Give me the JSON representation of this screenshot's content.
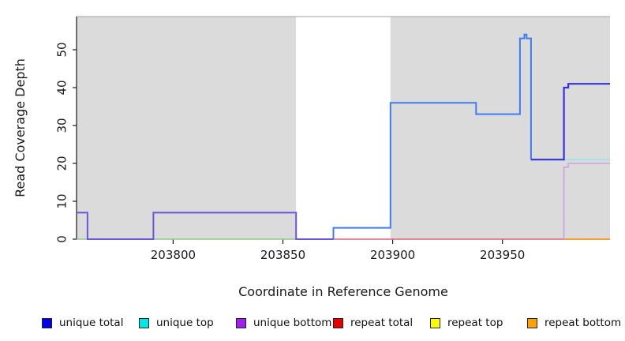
{
  "figure": {
    "background": "#ffffff",
    "title": ""
  },
  "chart_data": {
    "type": "line",
    "subtype": "step-coverage",
    "title": "",
    "xlabel": "Coordinate in Reference Genome",
    "ylabel": "Read Coverage Depth",
    "xlim": [
      203756,
      203999
    ],
    "ylim": [
      0,
      58.75
    ],
    "x_ticks": [
      203800,
      203850,
      203900,
      203950
    ],
    "y_ticks": [
      0,
      10,
      20,
      30,
      40,
      50
    ],
    "grid": "off",
    "legend_position": "bottom",
    "axis_color": "#1a1a1a",
    "background_regions": [
      {
        "name": "shaded-region-left",
        "x0": 203756,
        "x1": 203856,
        "color": "#DBDBDB"
      },
      {
        "name": "unshaded-gap",
        "x0": 203856,
        "x1": 203899,
        "color": "#FFFFFF"
      },
      {
        "name": "shaded-region-right",
        "x0": 203899,
        "x1": 203999,
        "color": "#DBDBDB"
      }
    ],
    "top_border_color": "#A0A0A0",
    "series": [
      {
        "name": "unique total",
        "color": "#0000EE",
        "steps": [
          [
            203756,
            7
          ],
          [
            203761,
            0
          ],
          [
            203791,
            7
          ],
          [
            203856,
            0
          ],
          [
            203873,
            3
          ],
          [
            203899,
            36
          ],
          [
            203938,
            33
          ],
          [
            203958,
            53
          ],
          [
            203960,
            54
          ],
          [
            203961,
            53
          ],
          [
            203963,
            21
          ],
          [
            203978,
            40
          ],
          [
            203980,
            41
          ],
          [
            203999,
            41
          ]
        ]
      },
      {
        "name": "unique top",
        "color": "#00E5E5",
        "steps": [
          [
            203756,
            0
          ],
          [
            203978,
            21
          ],
          [
            203999,
            21
          ]
        ]
      },
      {
        "name": "unique bottom",
        "color": "#A020F0",
        "steps": [
          [
            203756,
            7
          ],
          [
            203761,
            0
          ],
          [
            203791,
            7
          ],
          [
            203856,
            0
          ],
          [
            203978,
            19
          ],
          [
            203980,
            20
          ],
          [
            203999,
            20
          ]
        ]
      },
      {
        "name": "repeat total",
        "color": "#E60000",
        "steps": [
          [
            203756,
            0
          ],
          [
            203999,
            0
          ]
        ]
      },
      {
        "name": "repeat top",
        "color": "#FFFF00",
        "steps": [
          [
            203756,
            0
          ],
          [
            203999,
            0
          ]
        ]
      },
      {
        "name": "repeat bottom",
        "color": "#FFA200",
        "steps": [
          [
            203756,
            0
          ],
          [
            203999,
            0
          ]
        ]
      }
    ],
    "render_lines": [
      {
        "name": "baseline-green",
        "color": "#8CC98C",
        "width": 1.6,
        "pts": [
          [
            203756,
            0
          ],
          [
            203873,
            0
          ]
        ]
      },
      {
        "name": "baseline-red",
        "color": "#E0617E",
        "width": 1.6,
        "pts": [
          [
            203873,
            0
          ],
          [
            203978,
            0
          ]
        ]
      },
      {
        "name": "baseline-orange",
        "color": "#F89D30",
        "width": 2,
        "pts": [
          [
            203978,
            0
          ],
          [
            203999,
            0
          ]
        ]
      },
      {
        "name": "unique-bottom-plum",
        "color": "#CDA2DF",
        "width": 1.6,
        "pts": [
          [
            203978,
            0
          ],
          [
            203978,
            19
          ],
          [
            203980,
            19
          ],
          [
            203980,
            20
          ],
          [
            203999,
            20
          ]
        ]
      },
      {
        "name": "unique-top-cyan",
        "color": "#9FE4E2",
        "width": 2,
        "pts": [
          [
            203978,
            21
          ],
          [
            203999,
            21
          ]
        ]
      },
      {
        "name": "unique-overlap-indigo",
        "color": "#6A55DC",
        "width": 2,
        "pts": [
          [
            203756,
            7
          ],
          [
            203761,
            7
          ],
          [
            203761,
            0
          ],
          [
            203791,
            0
          ],
          [
            203791,
            7
          ],
          [
            203856,
            7
          ],
          [
            203856,
            0
          ],
          [
            203873,
            0
          ]
        ]
      },
      {
        "name": "unique-total-lightblue",
        "color": "#3D7CF2",
        "width": 2,
        "pts": [
          [
            203873,
            0
          ],
          [
            203873,
            3
          ],
          [
            203899,
            3
          ],
          [
            203899,
            36
          ],
          [
            203938,
            36
          ],
          [
            203938,
            33
          ],
          [
            203958,
            33
          ],
          [
            203958,
            53
          ],
          [
            203960,
            53
          ],
          [
            203960,
            54
          ],
          [
            203961,
            54
          ],
          [
            203961,
            53
          ],
          [
            203963,
            53
          ],
          [
            203963,
            21
          ]
        ]
      },
      {
        "name": "unique-total-darkblue",
        "color": "#3432E0",
        "width": 2.2,
        "pts": [
          [
            203963,
            21
          ],
          [
            203978,
            21
          ],
          [
            203978,
            40
          ],
          [
            203980,
            40
          ],
          [
            203980,
            41
          ],
          [
            203999,
            41
          ]
        ]
      }
    ]
  }
}
